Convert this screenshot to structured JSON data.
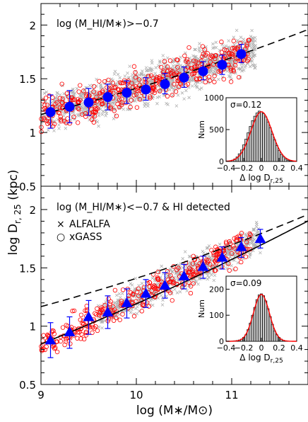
{
  "figure": {
    "x_axis_label": "log (M∗/M⊙)",
    "y_axis_label": "log D",
    "y_axis_label_sub": "r, 25",
    "y_axis_label_unit": " (kpc)",
    "x_ticks": [
      "9",
      "10",
      "11"
    ],
    "y_ticks": [
      "0.5",
      "1",
      "1.5",
      "2"
    ]
  },
  "chart_data": [
    {
      "type": "scatter",
      "panel": "top",
      "annotation": "log (M_HI/M∗)>−0.7",
      "xlim": [
        9.0,
        11.8
      ],
      "ylim": [
        0.5,
        2.2
      ],
      "colors": {
        "alfalfa": "#b0b0b0",
        "xgass": "#ff0000",
        "binned": "#0000ff"
      },
      "binned_medians": {
        "marker": "circle",
        "x": [
          9.1,
          9.3,
          9.5,
          9.7,
          9.9,
          10.1,
          10.3,
          10.5,
          10.7,
          10.9,
          11.1
        ],
        "y": [
          1.19,
          1.24,
          1.28,
          1.33,
          1.37,
          1.4,
          1.45,
          1.51,
          1.57,
          1.63,
          1.73
        ],
        "err_low": [
          0.15,
          0.15,
          0.12,
          0.12,
          0.1,
          0.1,
          0.09,
          0.09,
          0.08,
          0.09,
          0.08
        ],
        "err_high": [
          0.16,
          0.15,
          0.13,
          0.12,
          0.11,
          0.11,
          0.1,
          0.1,
          0.09,
          0.09,
          0.09
        ]
      },
      "dashed_fit": {
        "x": [
          9.0,
          11.8
        ],
        "note": "relation shown as dashed line"
      },
      "inset": {
        "type": "histogram",
        "xlabel": "Δ log D",
        "xlabel_sub": "r,25",
        "ylabel": "Num",
        "annotation": "σ=0.12",
        "xlim": [
          -0.4,
          0.4
        ],
        "ylim": [
          0,
          1000
        ],
        "x_ticks": [
          "−0.4",
          "−0.2",
          "0",
          "0.2",
          "0.4"
        ],
        "y_ticks": [
          "0",
          "500",
          "1000"
        ],
        "bin_centers": [
          -0.35,
          -0.325,
          -0.3,
          -0.275,
          -0.25,
          -0.225,
          -0.2,
          -0.175,
          -0.15,
          -0.125,
          -0.1,
          -0.075,
          -0.05,
          -0.025,
          0.0,
          0.025,
          0.05,
          0.075,
          0.1,
          0.125,
          0.15,
          0.175,
          0.2,
          0.225,
          0.25,
          0.275,
          0.3,
          0.325,
          0.35
        ],
        "counts": [
          10,
          20,
          40,
          70,
          120,
          180,
          260,
          350,
          450,
          550,
          640,
          710,
          760,
          790,
          780,
          750,
          700,
          620,
          530,
          430,
          340,
          250,
          170,
          110,
          70,
          40,
          20,
          10,
          5
        ],
        "gaussian": {
          "mu": 0.0,
          "sigma": 0.12,
          "peak": 780
        }
      }
    },
    {
      "type": "scatter",
      "panel": "bottom",
      "annotation": "log (M_HI/M∗)<−0.7 & HI detected",
      "xlim": [
        9.0,
        11.8
      ],
      "ylim": [
        0.5,
        2.2
      ],
      "legend": [
        {
          "marker": "×",
          "label": "ALFALFA",
          "color": "#a0a0a0"
        },
        {
          "marker": "○",
          "label": "xGASS",
          "color": "#ff0000"
        }
      ],
      "binned_medians": {
        "marker": "triangle",
        "x": [
          9.1,
          9.3,
          9.5,
          9.7,
          9.9,
          10.1,
          10.3,
          10.5,
          10.7,
          10.9,
          11.1,
          11.3
        ],
        "y": [
          0.88,
          0.95,
          1.08,
          1.12,
          1.2,
          1.28,
          1.35,
          1.43,
          1.51,
          1.59,
          1.68,
          1.75
        ],
        "err_low": [
          0.15,
          0.14,
          0.15,
          0.14,
          0.13,
          0.12,
          0.11,
          0.11,
          0.1,
          0.1,
          0.09,
          0.08
        ],
        "err_high": [
          0.15,
          0.13,
          0.14,
          0.14,
          0.12,
          0.12,
          0.11,
          0.1,
          0.09,
          0.09,
          0.08,
          0.08
        ]
      },
      "solid_fit": {
        "x": [
          9.0,
          11.8
        ],
        "note": "relation shown as solid line"
      },
      "dashed_fit": {
        "x": [
          9.0,
          11.8
        ],
        "note": "top-panel relation repeated as dashed line"
      },
      "inset": {
        "type": "histogram",
        "xlabel": "Δ log D",
        "xlabel_sub": "r,25",
        "ylabel": "Num",
        "annotation": "σ=0.09",
        "xlim": [
          -0.4,
          0.4
        ],
        "ylim": [
          0,
          250
        ],
        "x_ticks": [
          "−0.4",
          "−0.2",
          "0",
          "0.2",
          "0.4"
        ],
        "y_ticks": [
          "0",
          "100",
          "200"
        ],
        "bin_centers": [
          -0.325,
          -0.3,
          -0.275,
          -0.25,
          -0.225,
          -0.2,
          -0.175,
          -0.15,
          -0.125,
          -0.1,
          -0.075,
          -0.05,
          -0.025,
          0.0,
          0.025,
          0.05,
          0.075,
          0.1,
          0.125,
          0.15,
          0.175,
          0.2,
          0.225,
          0.25,
          0.275,
          0.3
        ],
        "counts": [
          1,
          2,
          3,
          5,
          8,
          15,
          25,
          45,
          70,
          100,
          130,
          160,
          178,
          182,
          175,
          155,
          125,
          95,
          65,
          40,
          25,
          15,
          8,
          4,
          2,
          1
        ],
        "gaussian": {
          "mu": 0.0,
          "sigma": 0.09,
          "peak": 180
        }
      }
    }
  ]
}
